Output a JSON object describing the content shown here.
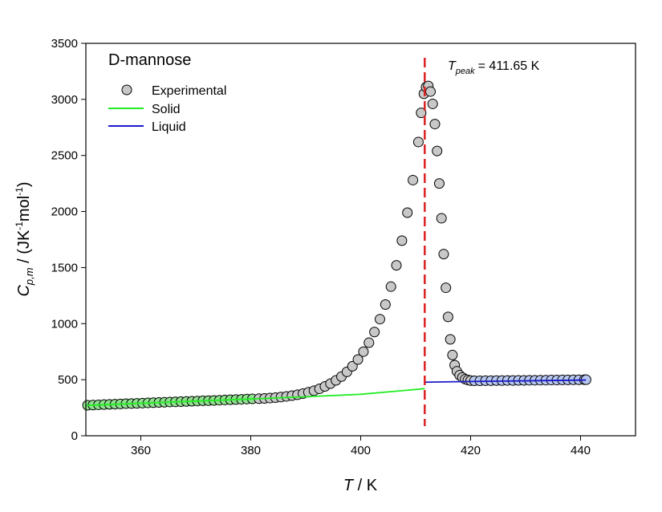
{
  "chart_data": {
    "type": "scatter",
    "sample_name": "D-mannose",
    "xlabel": {
      "symbol": "T",
      "unit": " / K"
    },
    "ylabel": {
      "symbol": "C",
      "subscript": "p,m",
      "unit_prefix": " / (JK",
      "sup1": "-1",
      "unit_mid": "mol",
      "sup2": "-1",
      "unit_suffix": ")"
    },
    "xlim": [
      350,
      450
    ],
    "ylim": [
      0,
      3500
    ],
    "xticks": [
      360,
      380,
      400,
      420,
      440
    ],
    "yticks": [
      0,
      500,
      1000,
      1500,
      2000,
      2500,
      3000,
      3500
    ],
    "grid": false,
    "legend": {
      "position": "top-left",
      "entries": [
        {
          "label": "Experimental",
          "marker": "circle",
          "color": "#c8c8c8"
        },
        {
          "label": "Solid",
          "line": true,
          "color": "#22ee22"
        },
        {
          "label": "Liquid",
          "line": true,
          "color": "#1a1acc"
        }
      ]
    },
    "peak": {
      "T": 411.65,
      "label_symbol": "T",
      "label_subscript": "peak",
      "label_value": "= 411.65 K",
      "line_color": "#dd2222"
    },
    "series": [
      {
        "name": "Experimental",
        "marker": "circle",
        "fill": "#c8c8c8",
        "edge": "#000000",
        "solid_fill": "#90e090",
        "liquid_fill": "#b8c8f0",
        "points": [
          [
            350.3,
            272
          ],
          [
            351.3,
            274
          ],
          [
            352.3,
            276
          ],
          [
            353.3,
            278
          ],
          [
            354.3,
            280
          ],
          [
            355.3,
            282
          ],
          [
            356.3,
            284
          ],
          [
            357.3,
            286
          ],
          [
            358.3,
            287
          ],
          [
            359.3,
            289
          ],
          [
            360.3,
            291
          ],
          [
            361.3,
            293
          ],
          [
            362.3,
            295
          ],
          [
            363.3,
            297
          ],
          [
            364.3,
            299
          ],
          [
            365.3,
            301
          ],
          [
            366.3,
            302
          ],
          [
            367.3,
            304
          ],
          [
            368.3,
            306
          ],
          [
            369.3,
            308
          ],
          [
            370.3,
            310
          ],
          [
            371.3,
            312
          ],
          [
            372.3,
            313
          ],
          [
            373.3,
            315
          ],
          [
            374.3,
            317
          ],
          [
            375.3,
            319
          ],
          [
            376.3,
            321
          ],
          [
            377.3,
            323
          ],
          [
            378.3,
            325
          ],
          [
            379.3,
            327
          ],
          [
            380.3,
            329
          ],
          [
            381.5,
            331
          ],
          [
            382.5,
            333
          ],
          [
            383.5,
            336
          ],
          [
            384.5,
            340
          ],
          [
            385.5,
            345
          ],
          [
            386.5,
            351
          ],
          [
            387.5,
            358
          ],
          [
            388.5,
            366
          ],
          [
            389.5,
            376
          ],
          [
            390.5,
            388
          ],
          [
            391.5,
            402
          ],
          [
            392.5,
            419
          ],
          [
            393.5,
            440
          ],
          [
            394.5,
            465
          ],
          [
            395.5,
            494
          ],
          [
            396.5,
            528
          ],
          [
            397.5,
            570
          ],
          [
            398.5,
            620
          ],
          [
            399.5,
            680
          ],
          [
            400.5,
            750
          ],
          [
            401.5,
            830
          ],
          [
            402.5,
            925
          ],
          [
            403.5,
            1040
          ],
          [
            404.5,
            1170
          ],
          [
            405.5,
            1330
          ],
          [
            406.5,
            1520
          ],
          [
            407.5,
            1740
          ],
          [
            408.5,
            1990
          ],
          [
            409.5,
            2280
          ],
          [
            410.5,
            2620
          ],
          [
            411.0,
            2880
          ],
          [
            411.5,
            3050
          ],
          [
            411.9,
            3110
          ],
          [
            412.3,
            3120
          ],
          [
            412.7,
            3070
          ],
          [
            413.1,
            2960
          ],
          [
            413.5,
            2780
          ],
          [
            413.9,
            2540
          ],
          [
            414.3,
            2250
          ],
          [
            414.7,
            1940
          ],
          [
            415.1,
            1620
          ],
          [
            415.5,
            1320
          ],
          [
            415.9,
            1060
          ],
          [
            416.3,
            860
          ],
          [
            416.7,
            720
          ],
          [
            417.1,
            630
          ],
          [
            417.5,
            575
          ],
          [
            418.0,
            540
          ],
          [
            418.5,
            520
          ],
          [
            419.0,
            505
          ],
          [
            419.5,
            497
          ],
          [
            420.0,
            492
          ],
          [
            420.7,
            490
          ],
          [
            421.7,
            490
          ],
          [
            422.7,
            491
          ],
          [
            423.7,
            491
          ],
          [
            424.7,
            492
          ],
          [
            425.7,
            492
          ],
          [
            426.7,
            493
          ],
          [
            427.7,
            493
          ],
          [
            428.7,
            494
          ],
          [
            429.7,
            494
          ],
          [
            430.7,
            495
          ],
          [
            431.7,
            495
          ],
          [
            432.7,
            496
          ],
          [
            433.7,
            496
          ],
          [
            434.7,
            497
          ],
          [
            435.7,
            497
          ],
          [
            436.7,
            498
          ],
          [
            437.7,
            498
          ],
          [
            438.7,
            499
          ],
          [
            439.7,
            499
          ],
          [
            440.7,
            500
          ],
          [
            441.0,
            500
          ]
        ]
      },
      {
        "name": "Solid",
        "type": "line",
        "color": "#22ee22",
        "points": [
          [
            350,
            270
          ],
          [
            360,
            290
          ],
          [
            370,
            309
          ],
          [
            380,
            328
          ],
          [
            390,
            348
          ],
          [
            400,
            370
          ],
          [
            411.65,
            420
          ]
        ]
      },
      {
        "name": "Liquid",
        "type": "line",
        "color": "#1a1acc",
        "points": [
          [
            411.65,
            478
          ],
          [
            420,
            484
          ],
          [
            430,
            490
          ],
          [
            441,
            497
          ]
        ]
      }
    ]
  }
}
